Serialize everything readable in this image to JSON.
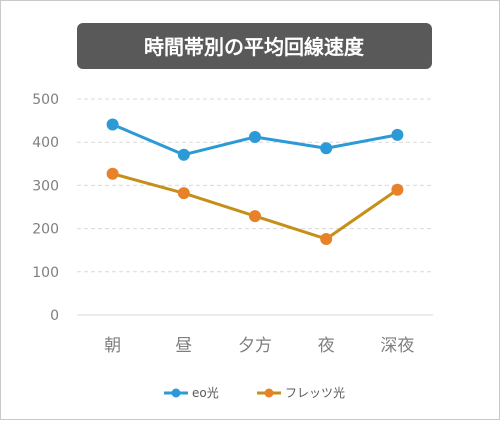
{
  "chart_data": {
    "type": "line",
    "title": "時間帯別の平均回線速度",
    "categories": [
      "朝",
      "昼",
      "夕方",
      "夜",
      "深夜"
    ],
    "series": [
      {
        "name": "eo光",
        "values": [
          441,
          371,
          412,
          386,
          417
        ],
        "color": "#2b9ad6"
      },
      {
        "name": "フレッツ光",
        "values": [
          327,
          282,
          229,
          176,
          290
        ],
        "color": "#c58f1a",
        "marker_color": "#e8822a"
      }
    ],
    "ylim": [
      0,
      500
    ],
    "yticks": [
      0,
      100,
      200,
      300,
      400,
      500
    ],
    "grid": true,
    "legend_position": "bottom",
    "xlabel": "",
    "ylabel": ""
  },
  "colors": {
    "title_bg": "#595959",
    "grid": "#d9d9d9",
    "axis_text": "#7f7f7f"
  }
}
